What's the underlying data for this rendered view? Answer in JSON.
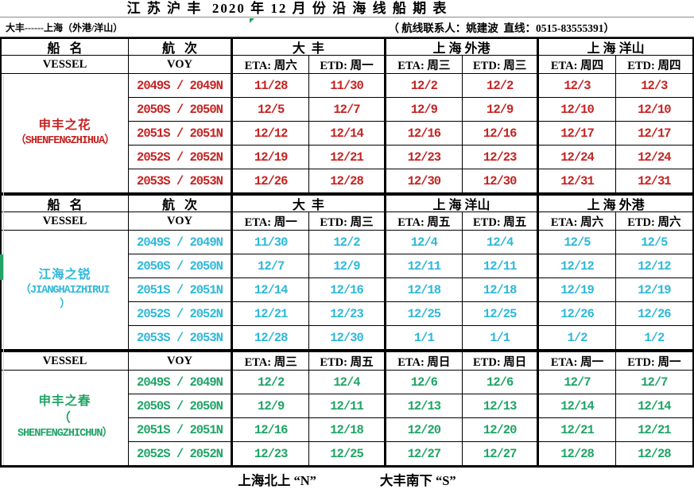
{
  "title": "江 苏 沪 丰  2020 年 12 月 份 沿 海 线 船 期 表",
  "subtitle": {
    "route": "大丰------上海（外港/洋山）",
    "contact": "（ 航线联系人：姚建波  直线：0515-83555391）"
  },
  "labels": {
    "vessel_cn": "船   名",
    "voy_cn": "航   次",
    "vessel_en": "VESSEL",
    "voy_en": "VOY"
  },
  "colors": {
    "section1_red": "#c42322",
    "section2_cyan": "#2eb8d9",
    "section3_green": "#1fa465",
    "marker_green": "#1e9e52",
    "strip_green": "#21a366",
    "border_black": "#000000"
  },
  "sections": [
    {
      "color": "#c42322",
      "ports": [
        "大  丰",
        "上 海 外港",
        "上 海 洋山"
      ],
      "day_headers": [
        "ETA: 周六",
        "ETD: 周一",
        "ETA: 周三",
        "ETD: 周三",
        "ETA: 周四",
        "ETD: 周四"
      ],
      "vessel_lines": [
        "申丰之花",
        "（SHENFENGZHIHUA）",
        ""
      ],
      "rows": [
        {
          "voy": "2049S / 2049N",
          "dates": [
            "11/28",
            "11/30",
            "12/2",
            "12/2",
            "12/3",
            "12/3"
          ]
        },
        {
          "voy": "2050S / 2050N",
          "dates": [
            "12/5",
            "12/7",
            "12/9",
            "12/9",
            "12/10",
            "12/10"
          ]
        },
        {
          "voy": "2051S / 2051N",
          "dates": [
            "12/12",
            "12/14",
            "12/16",
            "12/16",
            "12/17",
            "12/17"
          ]
        },
        {
          "voy": "2052S / 2052N",
          "dates": [
            "12/19",
            "12/21",
            "12/23",
            "12/23",
            "12/24",
            "12/24"
          ]
        },
        {
          "voy": "2053S / 2053N",
          "dates": [
            "12/26",
            "12/28",
            "12/30",
            "12/30",
            "12/31",
            "12/31"
          ]
        }
      ]
    },
    {
      "color": "#2eb8d9",
      "ports": [
        "大  丰",
        "上 海 洋山",
        "上 海 外港"
      ],
      "day_headers": [
        "ETA: 周一",
        "ETD: 周三",
        "ETA: 周五",
        "ETD: 周五",
        "ETA: 周六",
        "ETD: 周六"
      ],
      "vessel_lines": [
        "江海之锐",
        "（JIANGHAIZHIRUI",
        "）"
      ],
      "rows": [
        {
          "voy": "2049S / 2049N",
          "dates": [
            "11/30",
            "12/2",
            "12/4",
            "12/4",
            "12/5",
            "12/5"
          ]
        },
        {
          "voy": "2050S / 2050N",
          "dates": [
            "12/7",
            "12/9",
            "12/11",
            "12/11",
            "12/12",
            "12/12"
          ]
        },
        {
          "voy": "2051S / 2051N",
          "dates": [
            "12/14",
            "12/16",
            "12/18",
            "12/18",
            "12/19",
            "12/19"
          ]
        },
        {
          "voy": "2052S / 2052N",
          "dates": [
            "12/21",
            "12/23",
            "12/25",
            "12/25",
            "12/26",
            "12/26"
          ]
        },
        {
          "voy": "2053S / 2053N",
          "dates": [
            "12/28",
            "12/30",
            "1/1",
            "1/1",
            "1/2",
            "1/2"
          ]
        }
      ]
    },
    {
      "color": "#1fa465",
      "ports": [],
      "day_headers": [
        "ETA: 周三",
        "ETD: 周五",
        "ETA: 周日",
        "ETD: 周日",
        "ETA: 周一",
        "ETD: 周一"
      ],
      "vessel_lines": [
        "申丰之春",
        "（",
        "SHENFENGZHICHUN）"
      ],
      "rows": [
        {
          "voy": "2049S / 2049N",
          "dates": [
            "12/2",
            "12/4",
            "12/6",
            "12/6",
            "12/7",
            "12/7"
          ]
        },
        {
          "voy": "2050S / 2050N",
          "dates": [
            "12/9",
            "12/11",
            "12/13",
            "12/13",
            "12/14",
            "12/14"
          ]
        },
        {
          "voy": "2051S / 2051N",
          "dates": [
            "12/16",
            "12/18",
            "12/20",
            "12/20",
            "12/21",
            "12/21"
          ]
        },
        {
          "voy": "2052S / 2052N",
          "dates": [
            "12/23",
            "12/25",
            "12/27",
            "12/27",
            "12/28",
            "12/28"
          ]
        }
      ]
    }
  ],
  "footer": {
    "north": "上海北上 “N”",
    "south": "大丰南下 “S”"
  }
}
